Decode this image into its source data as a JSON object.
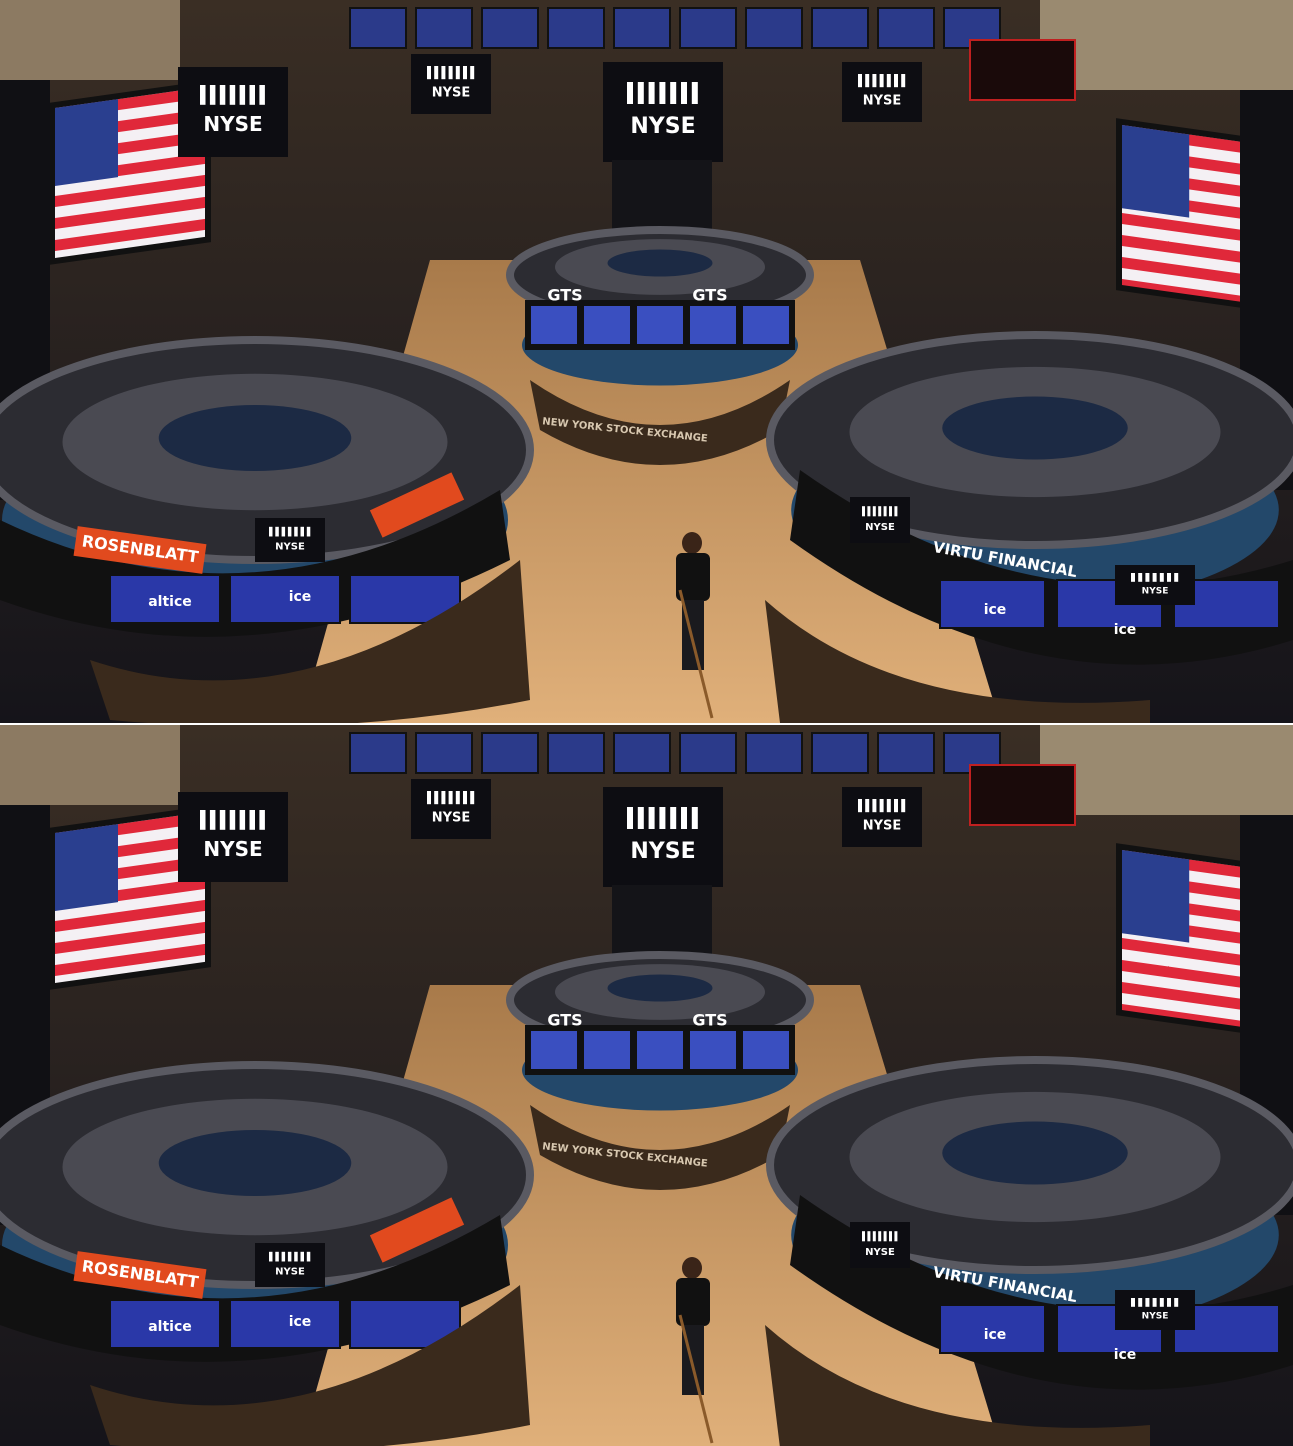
{
  "scene": {
    "labels": {
      "nyse": "NYSE",
      "gts": "GTS",
      "exchange": "NEW YORK STOCK EXCHANGE",
      "virtu": "VIRTU FINANCIAL",
      "rosenblatt": "ROSENBLATT",
      "ice": "ice",
      "altice": "altice"
    }
  }
}
